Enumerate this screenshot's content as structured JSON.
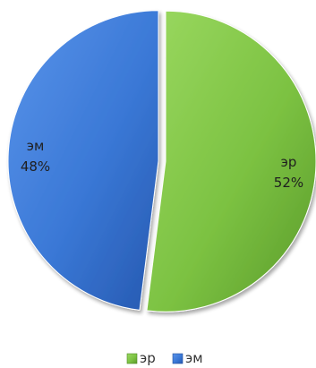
{
  "chart_data": {
    "type": "pie",
    "title": "",
    "slices": [
      {
        "label": "эр",
        "value": 52,
        "value_label": "52%",
        "color": "#7cc242"
      },
      {
        "label": "эм",
        "value": 48,
        "value_label": "48%",
        "color": "#3a78d6"
      }
    ],
    "legend": {
      "placement": "bottom",
      "entries": [
        "эр",
        "эм"
      ]
    },
    "exploded": true,
    "style": "3d-shaded"
  }
}
